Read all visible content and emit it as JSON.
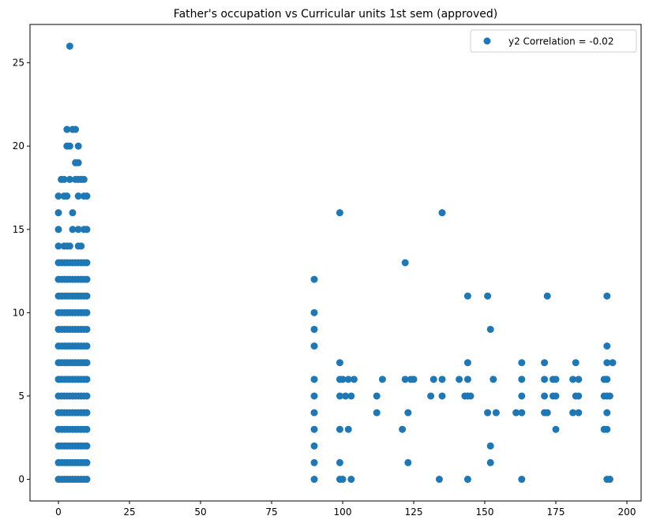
{
  "chart_data": {
    "type": "scatter",
    "title": "Father's occupation vs Curricular units 1st sem (approved)",
    "xlabel": "",
    "ylabel": "",
    "xlim": [
      -10,
      205
    ],
    "ylim": [
      -1.3,
      27.3
    ],
    "x_ticks": [
      0,
      25,
      50,
      75,
      100,
      125,
      150,
      175,
      200
    ],
    "y_ticks": [
      0,
      5,
      10,
      15,
      20,
      25
    ],
    "grid": false,
    "legend_position": "top-right",
    "marker_color": "#1f77b4",
    "series": [
      {
        "name": "y2 Correlation = -0.02",
        "dense_columns": {
          "x": [
            0,
            1,
            2,
            3,
            4,
            5,
            6,
            7,
            8,
            9,
            10
          ],
          "y_from": 0,
          "y_to": 13
        },
        "points": [
          [
            4,
            26
          ],
          [
            3,
            21
          ],
          [
            5,
            21
          ],
          [
            6,
            21
          ],
          [
            3,
            20
          ],
          [
            4,
            20
          ],
          [
            7,
            20
          ],
          [
            6,
            19
          ],
          [
            7,
            19
          ],
          [
            1,
            18
          ],
          [
            2,
            18
          ],
          [
            4,
            18
          ],
          [
            6,
            18
          ],
          [
            7,
            18
          ],
          [
            8,
            18
          ],
          [
            9,
            18
          ],
          [
            0,
            17
          ],
          [
            2,
            17
          ],
          [
            3,
            17
          ],
          [
            7,
            17
          ],
          [
            9,
            17
          ],
          [
            10,
            17
          ],
          [
            0,
            16
          ],
          [
            5,
            16
          ],
          [
            0,
            15
          ],
          [
            5,
            15
          ],
          [
            7,
            15
          ],
          [
            9,
            15
          ],
          [
            10,
            15
          ],
          [
            0,
            14
          ],
          [
            2,
            14
          ],
          [
            3,
            14
          ],
          [
            4,
            14
          ],
          [
            7,
            14
          ],
          [
            8,
            14
          ],
          [
            90,
            0
          ],
          [
            90,
            1
          ],
          [
            90,
            2
          ],
          [
            90,
            3
          ],
          [
            90,
            4
          ],
          [
            90,
            5
          ],
          [
            90,
            6
          ],
          [
            90,
            8
          ],
          [
            90,
            9
          ],
          [
            90,
            10
          ],
          [
            90,
            12
          ],
          [
            99,
            0
          ],
          [
            99,
            1
          ],
          [
            99,
            3
          ],
          [
            99,
            5
          ],
          [
            99,
            6
          ],
          [
            99,
            7
          ],
          [
            99,
            16
          ],
          [
            100,
            0
          ],
          [
            100,
            6
          ],
          [
            101,
            5
          ],
          [
            102,
            3
          ],
          [
            102,
            6
          ],
          [
            103,
            0
          ],
          [
            103,
            5
          ],
          [
            104,
            6
          ],
          [
            112,
            4
          ],
          [
            112,
            5
          ],
          [
            114,
            6
          ],
          [
            121,
            3
          ],
          [
            122,
            6
          ],
          [
            122,
            13
          ],
          [
            123,
            1
          ],
          [
            123,
            4
          ],
          [
            124,
            6
          ],
          [
            125,
            6
          ],
          [
            131,
            5
          ],
          [
            132,
            6
          ],
          [
            134,
            0
          ],
          [
            135,
            5
          ],
          [
            135,
            6
          ],
          [
            135,
            16
          ],
          [
            141,
            6
          ],
          [
            143,
            5
          ],
          [
            144,
            0
          ],
          [
            144,
            5
          ],
          [
            144,
            6
          ],
          [
            144,
            7
          ],
          [
            144,
            11
          ],
          [
            145,
            5
          ],
          [
            151,
            4
          ],
          [
            151,
            11
          ],
          [
            152,
            1
          ],
          [
            152,
            2
          ],
          [
            152,
            9
          ],
          [
            153,
            6
          ],
          [
            154,
            4
          ],
          [
            161,
            4
          ],
          [
            163,
            0
          ],
          [
            163,
            4
          ],
          [
            163,
            5
          ],
          [
            163,
            6
          ],
          [
            163,
            7
          ],
          [
            171,
            4
          ],
          [
            171,
            5
          ],
          [
            171,
            6
          ],
          [
            171,
            7
          ],
          [
            172,
            4
          ],
          [
            172,
            11
          ],
          [
            174,
            5
          ],
          [
            174,
            6
          ],
          [
            175,
            3
          ],
          [
            175,
            5
          ],
          [
            175,
            6
          ],
          [
            181,
            4
          ],
          [
            181,
            6
          ],
          [
            182,
            5
          ],
          [
            182,
            7
          ],
          [
            183,
            4
          ],
          [
            183,
            5
          ],
          [
            183,
            6
          ],
          [
            192,
            3
          ],
          [
            192,
            5
          ],
          [
            192,
            6
          ],
          [
            193,
            0
          ],
          [
            193,
            3
          ],
          [
            193,
            4
          ],
          [
            193,
            5
          ],
          [
            193,
            6
          ],
          [
            193,
            7
          ],
          [
            193,
            8
          ],
          [
            193,
            11
          ],
          [
            194,
            0
          ],
          [
            194,
            5
          ],
          [
            195,
            7
          ]
        ]
      }
    ]
  }
}
